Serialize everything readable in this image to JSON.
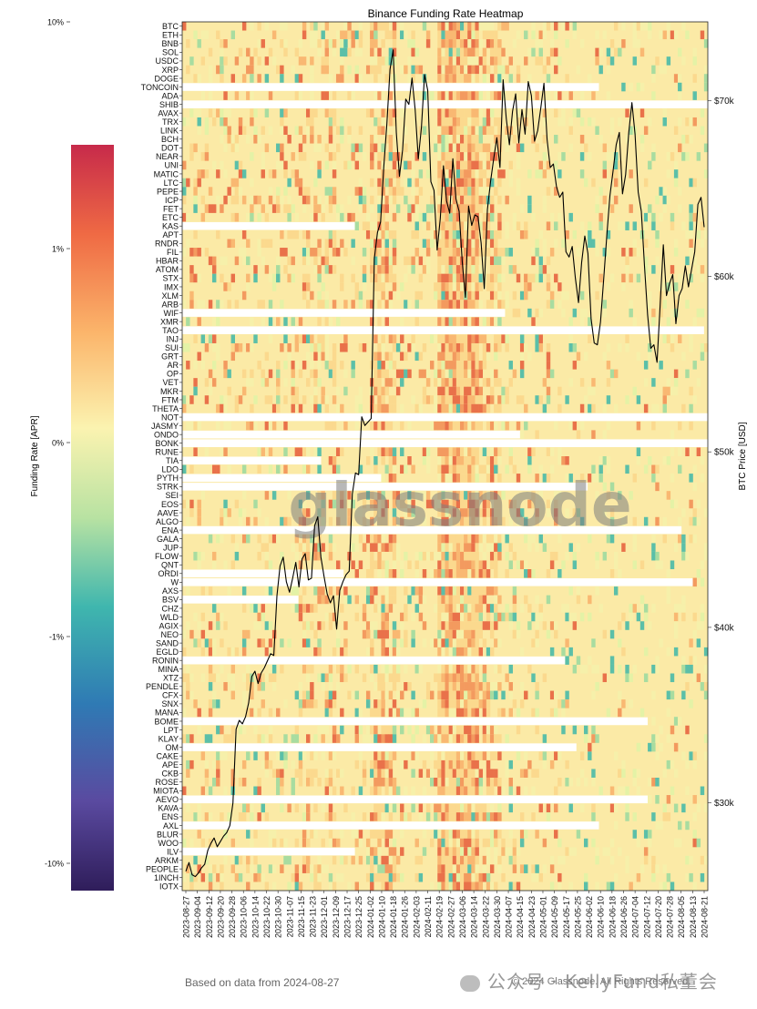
{
  "chart_data": {
    "type": "heatmap",
    "title": "Binance Funding Rate Heatmap",
    "colorbar": {
      "label": "Funding Rate [APR]",
      "ticks": [
        "10%",
        "1%",
        "0%",
        "-1%",
        "-10%"
      ]
    },
    "y_right_label": "BTC Price [USD]",
    "y_right_ticks": [
      "$70k",
      "$60k",
      "$50k",
      "$40k",
      "$30k"
    ],
    "y_right_range": [
      25000,
      74500
    ],
    "rows": [
      "BTC",
      "ETH",
      "BNB",
      "SOL",
      "USDC",
      "XRP",
      "DOGE",
      "TONCOIN",
      "ADA",
      "SHIB",
      "AVAX",
      "TRX",
      "LINK",
      "BCH",
      "DOT",
      "NEAR",
      "UNI",
      "MATIC",
      "LTC",
      "PEPE",
      "ICP",
      "FET",
      "ETC",
      "KAS",
      "APT",
      "RNDR",
      "FIL",
      "HBAR",
      "ATOM",
      "STX",
      "IMX",
      "XLM",
      "ARB",
      "WIF",
      "XMR",
      "TAO",
      "INJ",
      "SUI",
      "GRT",
      "AR",
      "OP",
      "VET",
      "MKR",
      "FTM",
      "THETA",
      "NOT",
      "JASMY",
      "ONDO",
      "BONK",
      "RUNE",
      "TIA",
      "LDO",
      "PYTH",
      "STRK",
      "SEI",
      "EOS",
      "AAVE",
      "ALGO",
      "ENA",
      "GALA",
      "JUP",
      "FLOW",
      "QNT",
      "ORDI",
      "W",
      "AXS",
      "BSV",
      "CHZ",
      "WLD",
      "AGIX",
      "NEO",
      "SAND",
      "EGLD",
      "RONIN",
      "MINA",
      "XTZ",
      "PENDLE",
      "CFX",
      "SNX",
      "MANA",
      "BOME",
      "LPT",
      "KLAY",
      "OM",
      "CAKE",
      "APE",
      "CKB",
      "ROSE",
      "MIOTA",
      "AEVO",
      "KAVA",
      "ENS",
      "AXL",
      "BLUR",
      "WOO",
      "ILV",
      "ARKM",
      "PEOPLE",
      "1INCH",
      "IOTX"
    ],
    "x_ticks": [
      "2023-08-27",
      "2023-09-04",
      "2023-09-12",
      "2023-09-20",
      "2023-09-28",
      "2023-10-06",
      "2023-10-14",
      "2023-10-22",
      "2023-10-30",
      "2023-11-07",
      "2023-11-15",
      "2023-11-23",
      "2023-12-01",
      "2023-12-09",
      "2023-12-17",
      "2023-12-25",
      "2024-01-02",
      "2024-01-10",
      "2024-01-18",
      "2024-01-26",
      "2024-02-03",
      "2024-02-11",
      "2024-02-19",
      "2024-02-27",
      "2024-03-06",
      "2024-03-14",
      "2024-03-22",
      "2024-03-30",
      "2024-04-07",
      "2024-04-15",
      "2024-04-23",
      "2024-05-01",
      "2024-05-09",
      "2024-05-17",
      "2024-05-25",
      "2024-06-02",
      "2024-06-10",
      "2024-06-18",
      "2024-06-26",
      "2024-07-04",
      "2024-07-12",
      "2024-07-20",
      "2024-07-28",
      "2024-08-05",
      "2024-08-13",
      "2024-08-21"
    ],
    "listing_start_index": {
      "TONCOIN": 36,
      "SHIB": 56,
      "KAS": 15,
      "WIF": 28,
      "XMR": 0,
      "TAO": 45,
      "NOT": 53,
      "ONDO": 29,
      "BONK": 56,
      "TIA": 12,
      "PYTH": 17,
      "STRK": 35,
      "ENA": 43,
      "GALA": 0,
      "W": 44,
      "ORDI": 14,
      "BSV": 10,
      "RONIN": 33,
      "BOME": 40,
      "OM": 34,
      "AEVO": 40,
      "AXL": 36,
      "ILV": 15
    },
    "btc_price_series": [
      26100,
      26600,
      25900,
      25800,
      26000,
      26300,
      26500,
      27300,
      27700,
      28000,
      27500,
      27800,
      28100,
      28300,
      28700,
      30000,
      34200,
      34700,
      34500,
      34900,
      35700,
      37200,
      37500,
      36800,
      37400,
      37700,
      38100,
      38500,
      38400,
      41800,
      43500,
      44000,
      42600,
      42000,
      42800,
      43700,
      42300,
      43900,
      44200,
      42700,
      42800,
      45800,
      46300,
      44000,
      42900,
      41900,
      41400,
      41800,
      39900,
      42100,
      42600,
      43000,
      43200,
      47600,
      48800,
      48700,
      52000,
      51500,
      51700,
      51900,
      61000,
      62500,
      63100,
      66200,
      68700,
      71800,
      72900,
      68200,
      65700,
      67200,
      70100,
      69800,
      71300,
      69500,
      66700,
      68500,
      71500,
      70600,
      65400,
      64900,
      61500,
      63300,
      66300,
      64300,
      63600,
      66700,
      64400,
      63700,
      60800,
      58800,
      64000,
      62900,
      63500,
      63400,
      61900,
      59300,
      63800,
      65400,
      66700,
      67900,
      66200,
      71200,
      69000,
      67500,
      69400,
      70400,
      67600,
      69500,
      68100,
      71100,
      70300,
      67700,
      68300,
      69600,
      71000,
      67800,
      66200,
      66400,
      65100,
      64500,
      64800,
      61400,
      61100,
      61700,
      59900,
      58500,
      60800,
      62300,
      61300,
      57600,
      56200,
      56100,
      57400,
      59800,
      62300,
      64600,
      66000,
      67500,
      68200,
      64700,
      65800,
      68200,
      69900,
      68100,
      64800,
      63700,
      60600,
      57800,
      55900,
      56100,
      55100,
      58400,
      61800,
      58900,
      59600,
      60100,
      57300,
      58900,
      59300,
      60600,
      59400,
      60400,
      61400,
      64100,
      64500,
      62800
    ]
  },
  "watermark": "glassnode",
  "footer": {
    "based_on": "Based on data from 2024-08-27",
    "wechat_caption": "公众号 · KellyFund私董会",
    "copyright": "© 2024 Glassnode. All Rights Reserved."
  },
  "colors": {
    "neutral": "#fbe8a3",
    "grid_bg": "#fff3c0",
    "price_line": "#000000"
  }
}
